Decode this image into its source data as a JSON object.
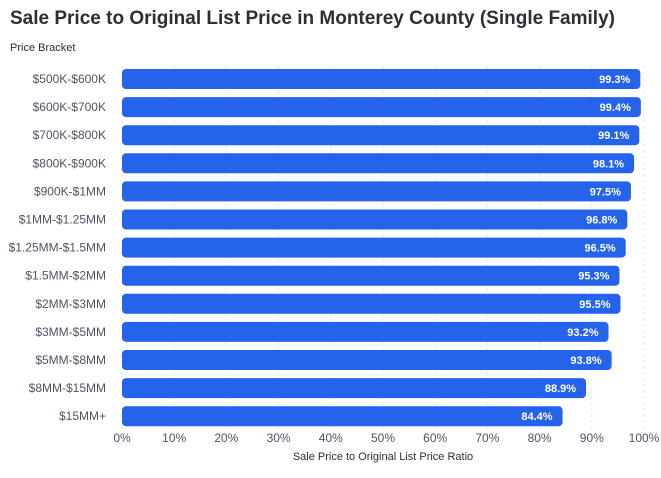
{
  "chart_data": {
    "type": "bar",
    "orientation": "horizontal",
    "title": "Sale Price to Original List Price in Monterey County (Single Family)",
    "ylabel": "Price Bracket",
    "xlabel": "Sale Price to Original List Price Ratio",
    "categories": [
      "$500K-$600K",
      "$600K-$700K",
      "$700K-$800K",
      "$800K-$900K",
      "$900K-$1MM",
      "$1MM-$1.25MM",
      "$1.25MM-$1.5MM",
      "$1.5MM-$2MM",
      "$2MM-$3MM",
      "$3MM-$5MM",
      "$5MM-$8MM",
      "$8MM-$15MM",
      "$15MM+"
    ],
    "values": [
      99.3,
      99.4,
      99.1,
      98.1,
      97.5,
      96.8,
      96.5,
      95.3,
      95.5,
      93.2,
      93.8,
      88.9,
      84.4
    ],
    "value_labels": [
      "99.3%",
      "99.4%",
      "99.1%",
      "98.1%",
      "97.5%",
      "96.8%",
      "96.5%",
      "95.3%",
      "95.5%",
      "93.2%",
      "93.8%",
      "88.9%",
      "84.4%"
    ],
    "xlim": [
      0,
      100
    ],
    "xticks": [
      "0%",
      "10%",
      "20%",
      "30%",
      "40%",
      "50%",
      "60%",
      "70%",
      "80%",
      "90%",
      "100%"
    ],
    "bar_color": "#2563eb",
    "grid": true
  }
}
